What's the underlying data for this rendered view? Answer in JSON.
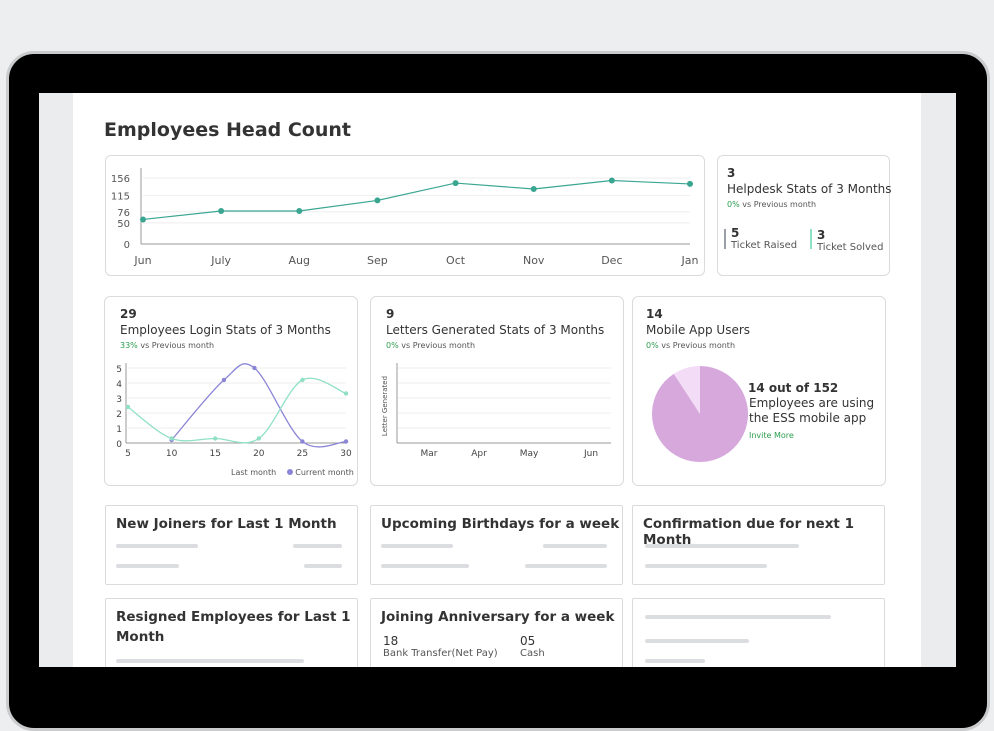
{
  "page": {
    "title": "Employees Head Count"
  },
  "headcount_chart": {
    "chart_data": {
      "type": "line",
      "categories": [
        "Jun",
        "July",
        "Aug",
        "Sep",
        "Oct",
        "Nov",
        "Dec",
        "Jan"
      ],
      "values": [
        58,
        78,
        78,
        103,
        144,
        130,
        150,
        142
      ],
      "yticks": [
        "156",
        "115",
        "76",
        "50",
        "0"
      ],
      "ylim": [
        0,
        156
      ],
      "color": "#3aa692"
    }
  },
  "helpdesk": {
    "count": "3",
    "title": "Helpdesk Stats of 3 Months",
    "delta_pct": "0%",
    "delta_text": "vs Previous month",
    "raised_count": "5",
    "raised_label": "Ticket Raised",
    "solved_count": "3",
    "solved_label": "Ticket Solved"
  },
  "login_stats": {
    "count": "29",
    "title": "Employees Login Stats of 3 Months",
    "delta_pct": "33%",
    "delta_text": "vs Previous month",
    "legend_last": "Last month",
    "legend_current": "Current month",
    "chart_data": {
      "type": "line",
      "x": [
        5,
        10,
        15,
        20,
        25,
        30
      ],
      "xticks": [
        "5",
        "10",
        "15",
        "20",
        "25",
        "30"
      ],
      "yticks": [
        "5",
        "4",
        "3",
        "2",
        "1",
        "0"
      ],
      "ylim": [
        0,
        5
      ],
      "series": [
        {
          "name": "Current month",
          "color": "#8b85d6",
          "points": [
            [
              10,
              0.2
            ],
            [
              16,
              4.2
            ],
            [
              19.5,
              5.0
            ],
            [
              25,
              0.1
            ],
            [
              30,
              0.1
            ]
          ]
        },
        {
          "name": "Last month",
          "color": "#8fe0c6",
          "points": [
            [
              5,
              2.4
            ],
            [
              10,
              0.3
            ],
            [
              15,
              0.3
            ],
            [
              20,
              0.3
            ],
            [
              25,
              4.2
            ],
            [
              30,
              3.3
            ]
          ]
        }
      ]
    }
  },
  "letters_stats": {
    "count": "9",
    "title": "Letters Generated Stats of 3 Months",
    "delta_pct": "0%",
    "delta_text": "vs Previous month",
    "ylabel": "Letter Generated",
    "xticks": [
      "Mar",
      "Apr",
      "May",
      "Jun"
    ]
  },
  "mobile_users": {
    "count": "14",
    "title": "Mobile App Users",
    "delta_pct": "0%",
    "delta_text": "vs Previous month",
    "summary": "14 out of 152",
    "line1": "Employees are using",
    "line2": "the ESS mobile app",
    "invite": "Invite More",
    "chart_data": {
      "type": "pie",
      "values": [
        14,
        138
      ],
      "colors": [
        "#f3dcf6",
        "#d6a8dc"
      ]
    }
  },
  "cards": {
    "new_joiners": "New Joiners for Last 1 Month",
    "birthdays": "Upcoming Birthdays for a week",
    "confirmation": "Confirmation due for next 1 Month",
    "resigned_line1": "Resigned Employees for Last 1",
    "resigned_line2": "Month",
    "anniversary": "Joining Anniversary for a week",
    "bank_count": "18",
    "bank_label": "Bank Transfer(Net Pay)",
    "cash_count": "05",
    "cash_label": "Cash"
  }
}
